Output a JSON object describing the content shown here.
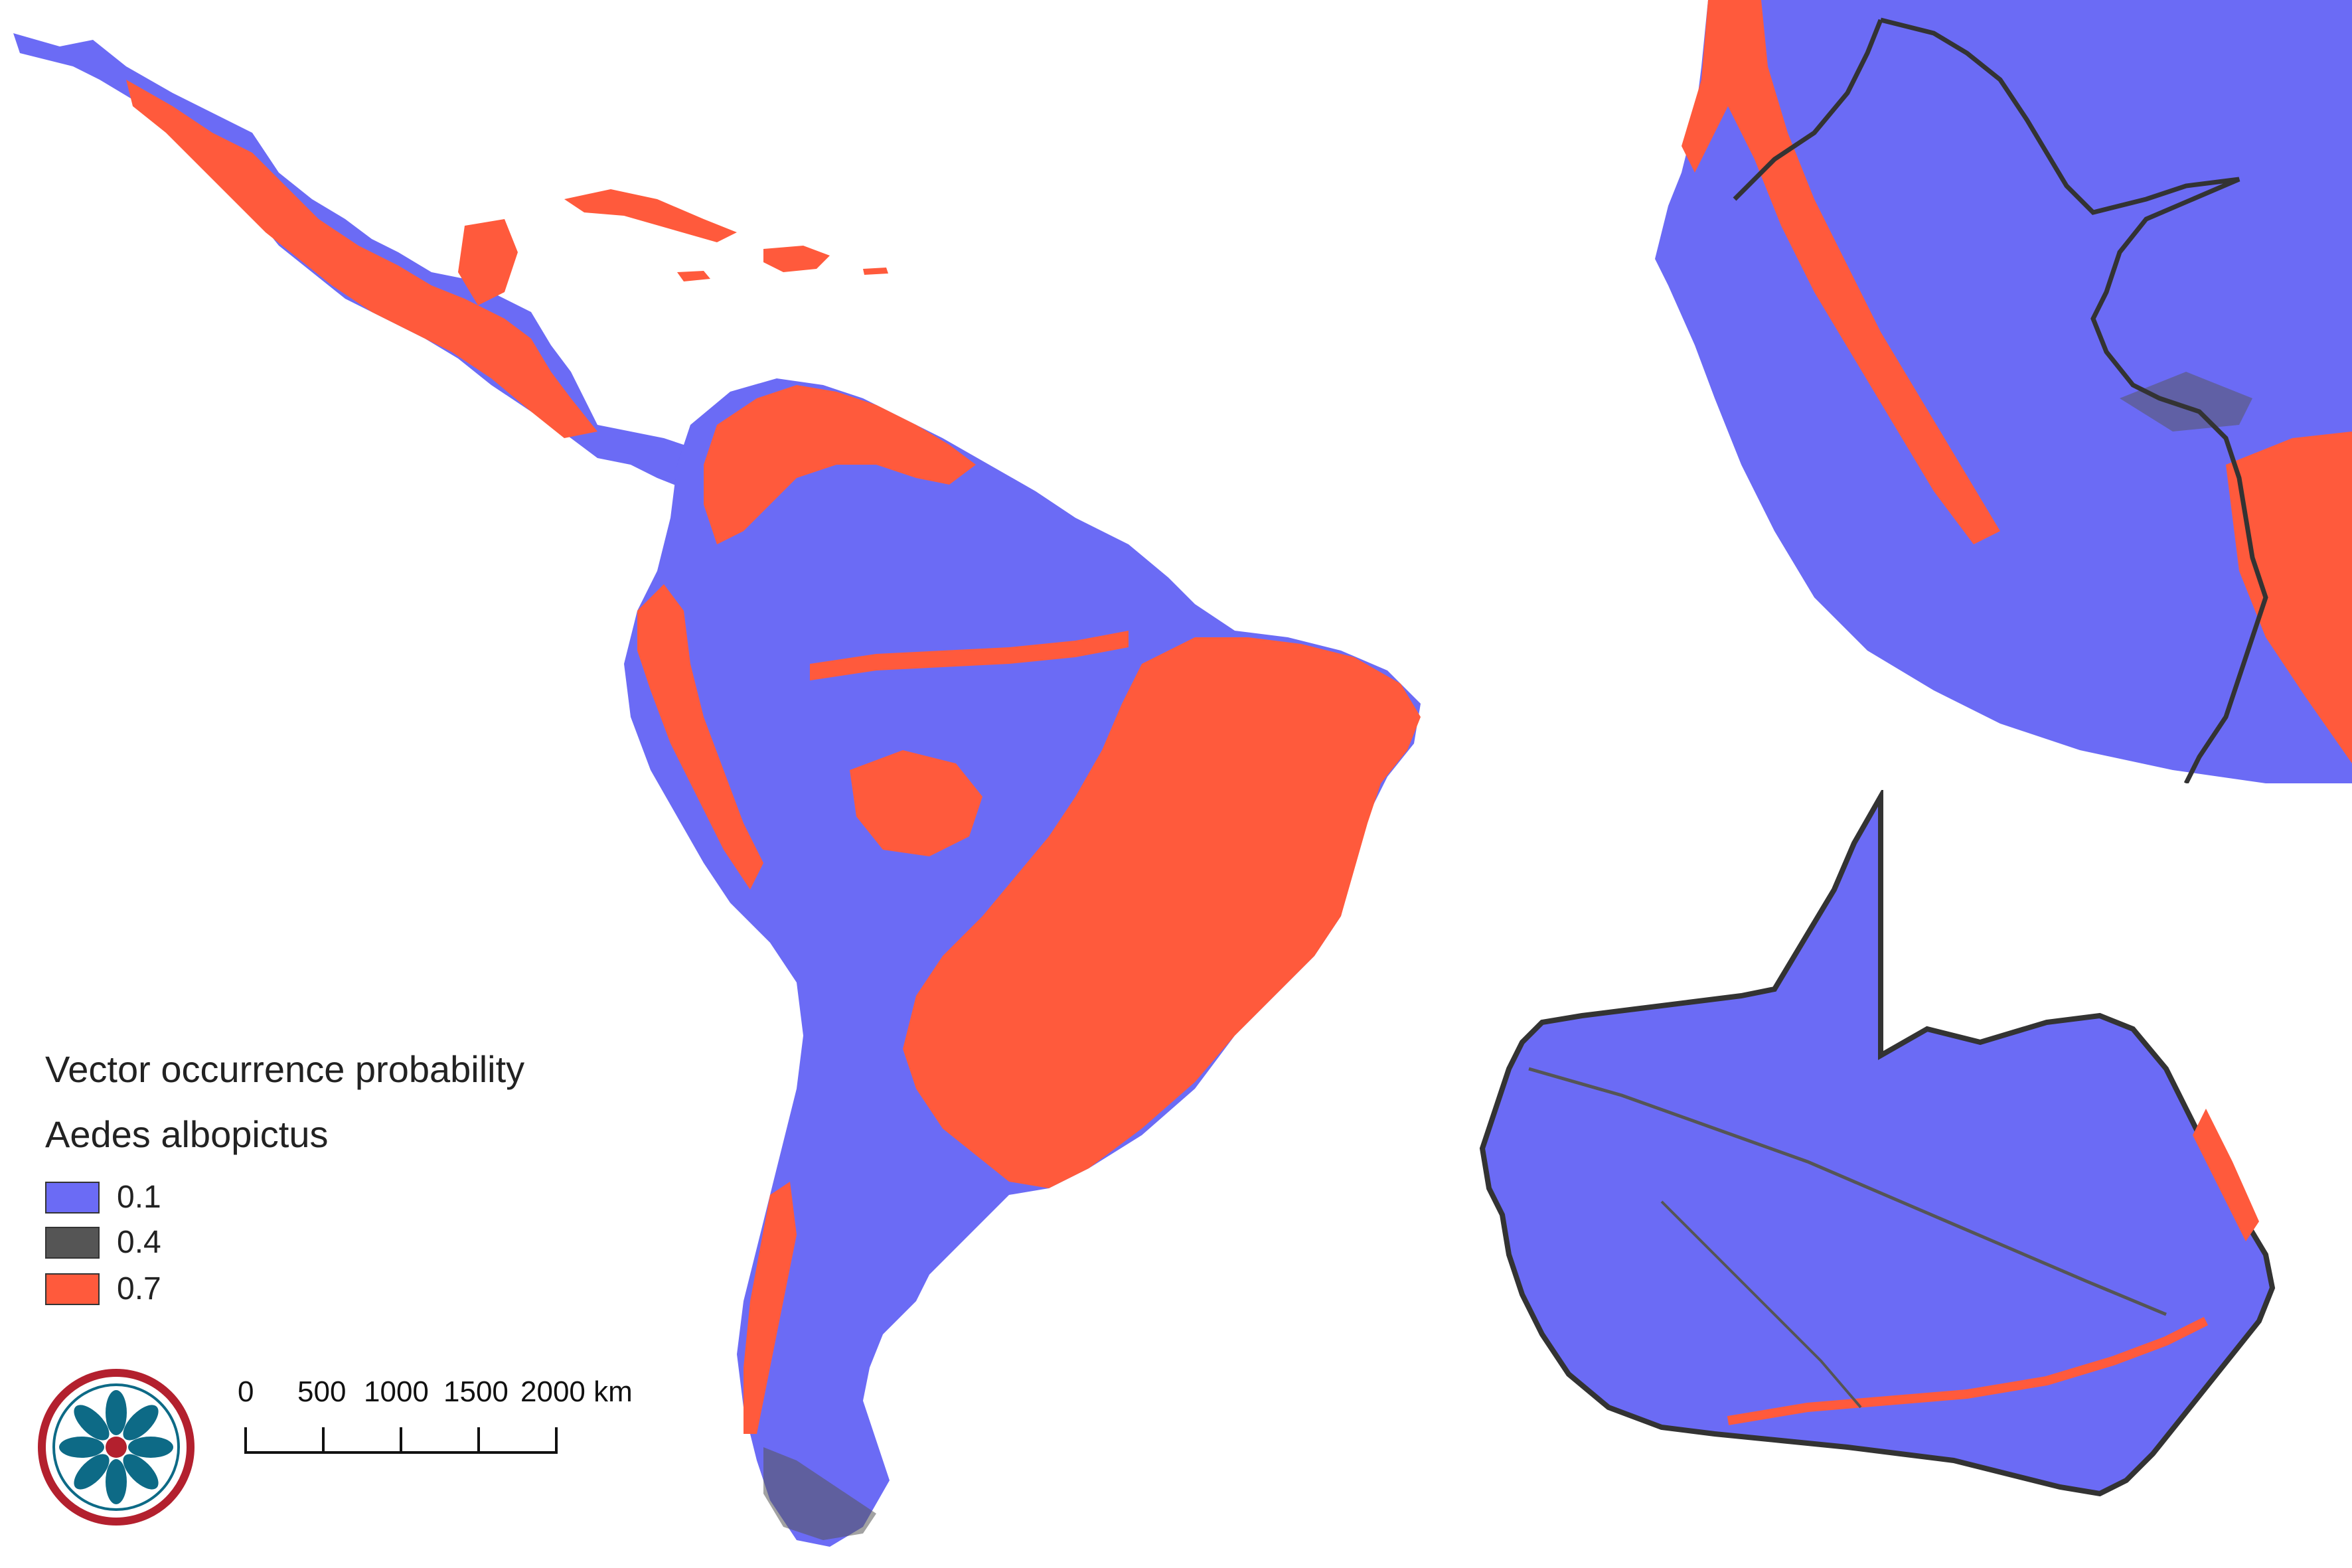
{
  "legend": {
    "title": "Vector occurrence probability",
    "species": "Aedes albopictus",
    "classes": [
      {
        "label": "0.1",
        "color": "#6b6bf5"
      },
      {
        "label": "0.4",
        "color": "#555555"
      },
      {
        "label": "0.7",
        "color": "#ff5a3c"
      }
    ]
  },
  "scale_bar": {
    "labels": [
      "0",
      "500",
      "1000",
      "1500",
      "2000 km"
    ]
  },
  "colors": {
    "low": "#6b6bf5",
    "mid": "#555555",
    "high": "#ff5a3c",
    "border": "#333333",
    "logo_red": "#b3202e",
    "logo_teal": "#0d6a86"
  }
}
